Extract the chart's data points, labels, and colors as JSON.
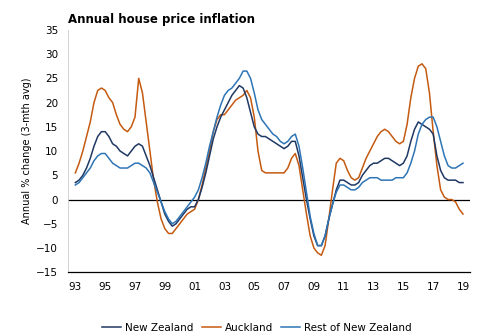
{
  "title": "Annual house price inflation",
  "ylabel": "Annual % change (3-mth avg)",
  "ylim": [
    -15,
    35
  ],
  "yticks": [
    -15,
    -10,
    -5,
    0,
    5,
    10,
    15,
    20,
    25,
    30,
    35
  ],
  "xticks": [
    1993,
    1995,
    1997,
    1999,
    2001,
    2003,
    2005,
    2007,
    2009,
    2011,
    2013,
    2015,
    2017,
    2019
  ],
  "xticklabels": [
    "93",
    "95",
    "97",
    "99",
    "01",
    "03",
    "05",
    "07",
    "09",
    "11",
    "13",
    "15",
    "17",
    "19"
  ],
  "xlim": [
    1992.5,
    2019.5
  ],
  "color_nz": "#1f3864",
  "color_auckland": "#c55a11",
  "color_rest": "#2e75b6",
  "linewidth": 1.1,
  "legend_labels": [
    "New Zealand",
    "Auckland",
    "Rest of New Zealand"
  ],
  "nz": [
    [
      1993.0,
      3.5
    ],
    [
      1993.25,
      4.0
    ],
    [
      1993.5,
      5.0
    ],
    [
      1993.75,
      6.5
    ],
    [
      1994.0,
      8.5
    ],
    [
      1994.25,
      11.0
    ],
    [
      1994.5,
      13.0
    ],
    [
      1994.75,
      14.0
    ],
    [
      1995.0,
      14.0
    ],
    [
      1995.25,
      13.0
    ],
    [
      1995.5,
      11.5
    ],
    [
      1995.75,
      11.0
    ],
    [
      1996.0,
      10.0
    ],
    [
      1996.25,
      9.5
    ],
    [
      1996.5,
      9.0
    ],
    [
      1996.75,
      10.0
    ],
    [
      1997.0,
      11.0
    ],
    [
      1997.25,
      11.5
    ],
    [
      1997.5,
      11.0
    ],
    [
      1997.75,
      9.0
    ],
    [
      1998.0,
      7.0
    ],
    [
      1998.25,
      4.5
    ],
    [
      1998.5,
      2.0
    ],
    [
      1998.75,
      -0.5
    ],
    [
      1999.0,
      -3.0
    ],
    [
      1999.25,
      -4.5
    ],
    [
      1999.5,
      -5.5
    ],
    [
      1999.75,
      -5.0
    ],
    [
      2000.0,
      -4.0
    ],
    [
      2000.25,
      -3.0
    ],
    [
      2000.5,
      -2.0
    ],
    [
      2000.75,
      -1.5
    ],
    [
      2001.0,
      -1.5
    ],
    [
      2001.25,
      0.0
    ],
    [
      2001.5,
      2.5
    ],
    [
      2001.75,
      5.5
    ],
    [
      2002.0,
      9.0
    ],
    [
      2002.25,
      12.5
    ],
    [
      2002.5,
      15.0
    ],
    [
      2002.75,
      17.0
    ],
    [
      2003.0,
      18.5
    ],
    [
      2003.25,
      20.0
    ],
    [
      2003.5,
      21.5
    ],
    [
      2003.75,
      22.5
    ],
    [
      2004.0,
      23.5
    ],
    [
      2004.25,
      23.0
    ],
    [
      2004.5,
      21.0
    ],
    [
      2004.75,
      18.0
    ],
    [
      2005.0,
      15.0
    ],
    [
      2005.25,
      13.5
    ],
    [
      2005.5,
      13.0
    ],
    [
      2005.75,
      13.0
    ],
    [
      2006.0,
      12.5
    ],
    [
      2006.25,
      12.0
    ],
    [
      2006.5,
      11.5
    ],
    [
      2006.75,
      11.0
    ],
    [
      2007.0,
      10.5
    ],
    [
      2007.25,
      11.0
    ],
    [
      2007.5,
      12.0
    ],
    [
      2007.75,
      12.0
    ],
    [
      2008.0,
      9.0
    ],
    [
      2008.25,
      4.5
    ],
    [
      2008.5,
      0.0
    ],
    [
      2008.75,
      -4.0
    ],
    [
      2009.0,
      -7.5
    ],
    [
      2009.25,
      -9.5
    ],
    [
      2009.5,
      -9.5
    ],
    [
      2009.75,
      -7.5
    ],
    [
      2010.0,
      -4.0
    ],
    [
      2010.25,
      -1.0
    ],
    [
      2010.5,
      2.0
    ],
    [
      2010.75,
      4.0
    ],
    [
      2011.0,
      4.0
    ],
    [
      2011.25,
      3.5
    ],
    [
      2011.5,
      3.0
    ],
    [
      2011.75,
      3.0
    ],
    [
      2012.0,
      3.5
    ],
    [
      2012.25,
      5.0
    ],
    [
      2012.5,
      6.0
    ],
    [
      2012.75,
      7.0
    ],
    [
      2013.0,
      7.5
    ],
    [
      2013.25,
      7.5
    ],
    [
      2013.5,
      8.0
    ],
    [
      2013.75,
      8.5
    ],
    [
      2014.0,
      8.5
    ],
    [
      2014.25,
      8.0
    ],
    [
      2014.5,
      7.5
    ],
    [
      2014.75,
      7.0
    ],
    [
      2015.0,
      7.5
    ],
    [
      2015.25,
      9.0
    ],
    [
      2015.5,
      12.0
    ],
    [
      2015.75,
      14.5
    ],
    [
      2016.0,
      16.0
    ],
    [
      2016.25,
      15.5
    ],
    [
      2016.5,
      15.0
    ],
    [
      2016.75,
      14.5
    ],
    [
      2017.0,
      13.5
    ],
    [
      2017.25,
      9.0
    ],
    [
      2017.5,
      6.0
    ],
    [
      2017.75,
      4.5
    ],
    [
      2018.0,
      4.0
    ],
    [
      2018.25,
      4.0
    ],
    [
      2018.5,
      4.0
    ],
    [
      2018.75,
      3.5
    ],
    [
      2019.0,
      3.5
    ]
  ],
  "auckland": [
    [
      1993.0,
      5.5
    ],
    [
      1993.25,
      7.5
    ],
    [
      1993.5,
      10.0
    ],
    [
      1993.75,
      13.0
    ],
    [
      1994.0,
      16.0
    ],
    [
      1994.25,
      20.0
    ],
    [
      1994.5,
      22.5
    ],
    [
      1994.75,
      23.0
    ],
    [
      1995.0,
      22.5
    ],
    [
      1995.25,
      21.0
    ],
    [
      1995.5,
      20.0
    ],
    [
      1995.75,
      17.5
    ],
    [
      1996.0,
      15.5
    ],
    [
      1996.25,
      14.5
    ],
    [
      1996.5,
      14.0
    ],
    [
      1996.75,
      15.0
    ],
    [
      1997.0,
      17.0
    ],
    [
      1997.25,
      25.0
    ],
    [
      1997.5,
      22.0
    ],
    [
      1997.75,
      16.0
    ],
    [
      1998.0,
      10.0
    ],
    [
      1998.25,
      4.0
    ],
    [
      1998.5,
      -0.5
    ],
    [
      1998.75,
      -4.0
    ],
    [
      1999.0,
      -6.0
    ],
    [
      1999.25,
      -7.0
    ],
    [
      1999.5,
      -7.0
    ],
    [
      1999.75,
      -6.0
    ],
    [
      2000.0,
      -5.0
    ],
    [
      2000.25,
      -4.0
    ],
    [
      2000.5,
      -3.0
    ],
    [
      2000.75,
      -2.5
    ],
    [
      2001.0,
      -2.0
    ],
    [
      2001.25,
      0.0
    ],
    [
      2001.5,
      3.0
    ],
    [
      2001.75,
      6.5
    ],
    [
      2002.0,
      10.0
    ],
    [
      2002.25,
      14.0
    ],
    [
      2002.5,
      16.5
    ],
    [
      2002.75,
      17.5
    ],
    [
      2003.0,
      17.5
    ],
    [
      2003.25,
      18.5
    ],
    [
      2003.5,
      19.5
    ],
    [
      2003.75,
      20.5
    ],
    [
      2004.0,
      21.0
    ],
    [
      2004.25,
      21.5
    ],
    [
      2004.5,
      22.5
    ],
    [
      2004.75,
      21.0
    ],
    [
      2005.0,
      17.0
    ],
    [
      2005.25,
      10.0
    ],
    [
      2005.5,
      6.0
    ],
    [
      2005.75,
      5.5
    ],
    [
      2006.0,
      5.5
    ],
    [
      2006.25,
      5.5
    ],
    [
      2006.5,
      5.5
    ],
    [
      2006.75,
      5.5
    ],
    [
      2007.0,
      5.5
    ],
    [
      2007.25,
      6.5
    ],
    [
      2007.5,
      8.5
    ],
    [
      2007.75,
      9.5
    ],
    [
      2008.0,
      7.0
    ],
    [
      2008.25,
      2.0
    ],
    [
      2008.5,
      -3.0
    ],
    [
      2008.75,
      -7.5
    ],
    [
      2009.0,
      -10.0
    ],
    [
      2009.25,
      -11.0
    ],
    [
      2009.5,
      -11.5
    ],
    [
      2009.75,
      -9.5
    ],
    [
      2010.0,
      -4.0
    ],
    [
      2010.25,
      2.0
    ],
    [
      2010.5,
      7.5
    ],
    [
      2010.75,
      8.5
    ],
    [
      2011.0,
      8.0
    ],
    [
      2011.25,
      6.0
    ],
    [
      2011.5,
      4.5
    ],
    [
      2011.75,
      4.0
    ],
    [
      2012.0,
      4.5
    ],
    [
      2012.25,
      6.5
    ],
    [
      2012.5,
      8.5
    ],
    [
      2012.75,
      10.0
    ],
    [
      2013.0,
      11.5
    ],
    [
      2013.25,
      13.0
    ],
    [
      2013.5,
      14.0
    ],
    [
      2013.75,
      14.5
    ],
    [
      2014.0,
      14.0
    ],
    [
      2014.25,
      13.0
    ],
    [
      2014.5,
      12.0
    ],
    [
      2014.75,
      11.5
    ],
    [
      2015.0,
      12.0
    ],
    [
      2015.25,
      15.5
    ],
    [
      2015.5,
      21.0
    ],
    [
      2015.75,
      25.0
    ],
    [
      2016.0,
      27.5
    ],
    [
      2016.25,
      28.0
    ],
    [
      2016.5,
      27.0
    ],
    [
      2016.75,
      22.0
    ],
    [
      2017.0,
      14.0
    ],
    [
      2017.25,
      7.0
    ],
    [
      2017.5,
      2.0
    ],
    [
      2017.75,
      0.5
    ],
    [
      2018.0,
      0.0
    ],
    [
      2018.25,
      0.0
    ],
    [
      2018.5,
      -0.5
    ],
    [
      2018.75,
      -2.0
    ],
    [
      2019.0,
      -3.0
    ]
  ],
  "rest": [
    [
      1993.0,
      3.0
    ],
    [
      1993.25,
      3.5
    ],
    [
      1993.5,
      4.5
    ],
    [
      1993.75,
      5.5
    ],
    [
      1994.0,
      6.5
    ],
    [
      1994.25,
      8.0
    ],
    [
      1994.5,
      9.0
    ],
    [
      1994.75,
      9.5
    ],
    [
      1995.0,
      9.5
    ],
    [
      1995.25,
      8.5
    ],
    [
      1995.5,
      7.5
    ],
    [
      1995.75,
      7.0
    ],
    [
      1996.0,
      6.5
    ],
    [
      1996.25,
      6.5
    ],
    [
      1996.5,
      6.5
    ],
    [
      1996.75,
      7.0
    ],
    [
      1997.0,
      7.5
    ],
    [
      1997.25,
      7.5
    ],
    [
      1997.5,
      7.0
    ],
    [
      1997.75,
      6.5
    ],
    [
      1998.0,
      5.5
    ],
    [
      1998.25,
      3.5
    ],
    [
      1998.5,
      1.5
    ],
    [
      1998.75,
      -0.5
    ],
    [
      1999.0,
      -2.5
    ],
    [
      1999.25,
      -4.0
    ],
    [
      1999.5,
      -5.0
    ],
    [
      1999.75,
      -4.5
    ],
    [
      2000.0,
      -3.5
    ],
    [
      2000.25,
      -2.5
    ],
    [
      2000.5,
      -1.5
    ],
    [
      2000.75,
      -0.5
    ],
    [
      2001.0,
      0.5
    ],
    [
      2001.25,
      2.0
    ],
    [
      2001.5,
      4.5
    ],
    [
      2001.75,
      7.5
    ],
    [
      2002.0,
      11.0
    ],
    [
      2002.25,
      14.0
    ],
    [
      2002.5,
      17.0
    ],
    [
      2002.75,
      19.5
    ],
    [
      2003.0,
      21.5
    ],
    [
      2003.25,
      22.5
    ],
    [
      2003.5,
      23.0
    ],
    [
      2003.75,
      24.0
    ],
    [
      2004.0,
      25.0
    ],
    [
      2004.25,
      26.5
    ],
    [
      2004.5,
      26.5
    ],
    [
      2004.75,
      25.0
    ],
    [
      2005.0,
      22.0
    ],
    [
      2005.25,
      18.5
    ],
    [
      2005.5,
      16.5
    ],
    [
      2005.75,
      15.5
    ],
    [
      2006.0,
      14.5
    ],
    [
      2006.25,
      13.5
    ],
    [
      2006.5,
      13.0
    ],
    [
      2006.75,
      12.0
    ],
    [
      2007.0,
      11.5
    ],
    [
      2007.25,
      12.0
    ],
    [
      2007.5,
      13.0
    ],
    [
      2007.75,
      13.5
    ],
    [
      2008.0,
      11.0
    ],
    [
      2008.25,
      6.5
    ],
    [
      2008.5,
      1.5
    ],
    [
      2008.75,
      -3.5
    ],
    [
      2009.0,
      -7.0
    ],
    [
      2009.25,
      -9.5
    ],
    [
      2009.5,
      -9.5
    ],
    [
      2009.75,
      -7.5
    ],
    [
      2010.0,
      -4.0
    ],
    [
      2010.25,
      -1.0
    ],
    [
      2010.5,
      1.5
    ],
    [
      2010.75,
      3.0
    ],
    [
      2011.0,
      3.0
    ],
    [
      2011.25,
      2.5
    ],
    [
      2011.5,
      2.0
    ],
    [
      2011.75,
      2.0
    ],
    [
      2012.0,
      2.5
    ],
    [
      2012.25,
      3.5
    ],
    [
      2012.5,
      4.0
    ],
    [
      2012.75,
      4.5
    ],
    [
      2013.0,
      4.5
    ],
    [
      2013.25,
      4.5
    ],
    [
      2013.5,
      4.0
    ],
    [
      2013.75,
      4.0
    ],
    [
      2014.0,
      4.0
    ],
    [
      2014.25,
      4.0
    ],
    [
      2014.5,
      4.5
    ],
    [
      2014.75,
      4.5
    ],
    [
      2015.0,
      4.5
    ],
    [
      2015.25,
      5.5
    ],
    [
      2015.5,
      7.5
    ],
    [
      2015.75,
      10.0
    ],
    [
      2016.0,
      13.5
    ],
    [
      2016.25,
      15.5
    ],
    [
      2016.5,
      16.5
    ],
    [
      2016.75,
      17.0
    ],
    [
      2017.0,
      17.0
    ],
    [
      2017.25,
      15.0
    ],
    [
      2017.5,
      12.0
    ],
    [
      2017.75,
      9.0
    ],
    [
      2018.0,
      7.0
    ],
    [
      2018.25,
      6.5
    ],
    [
      2018.5,
      6.5
    ],
    [
      2018.75,
      7.0
    ],
    [
      2019.0,
      7.5
    ]
  ]
}
